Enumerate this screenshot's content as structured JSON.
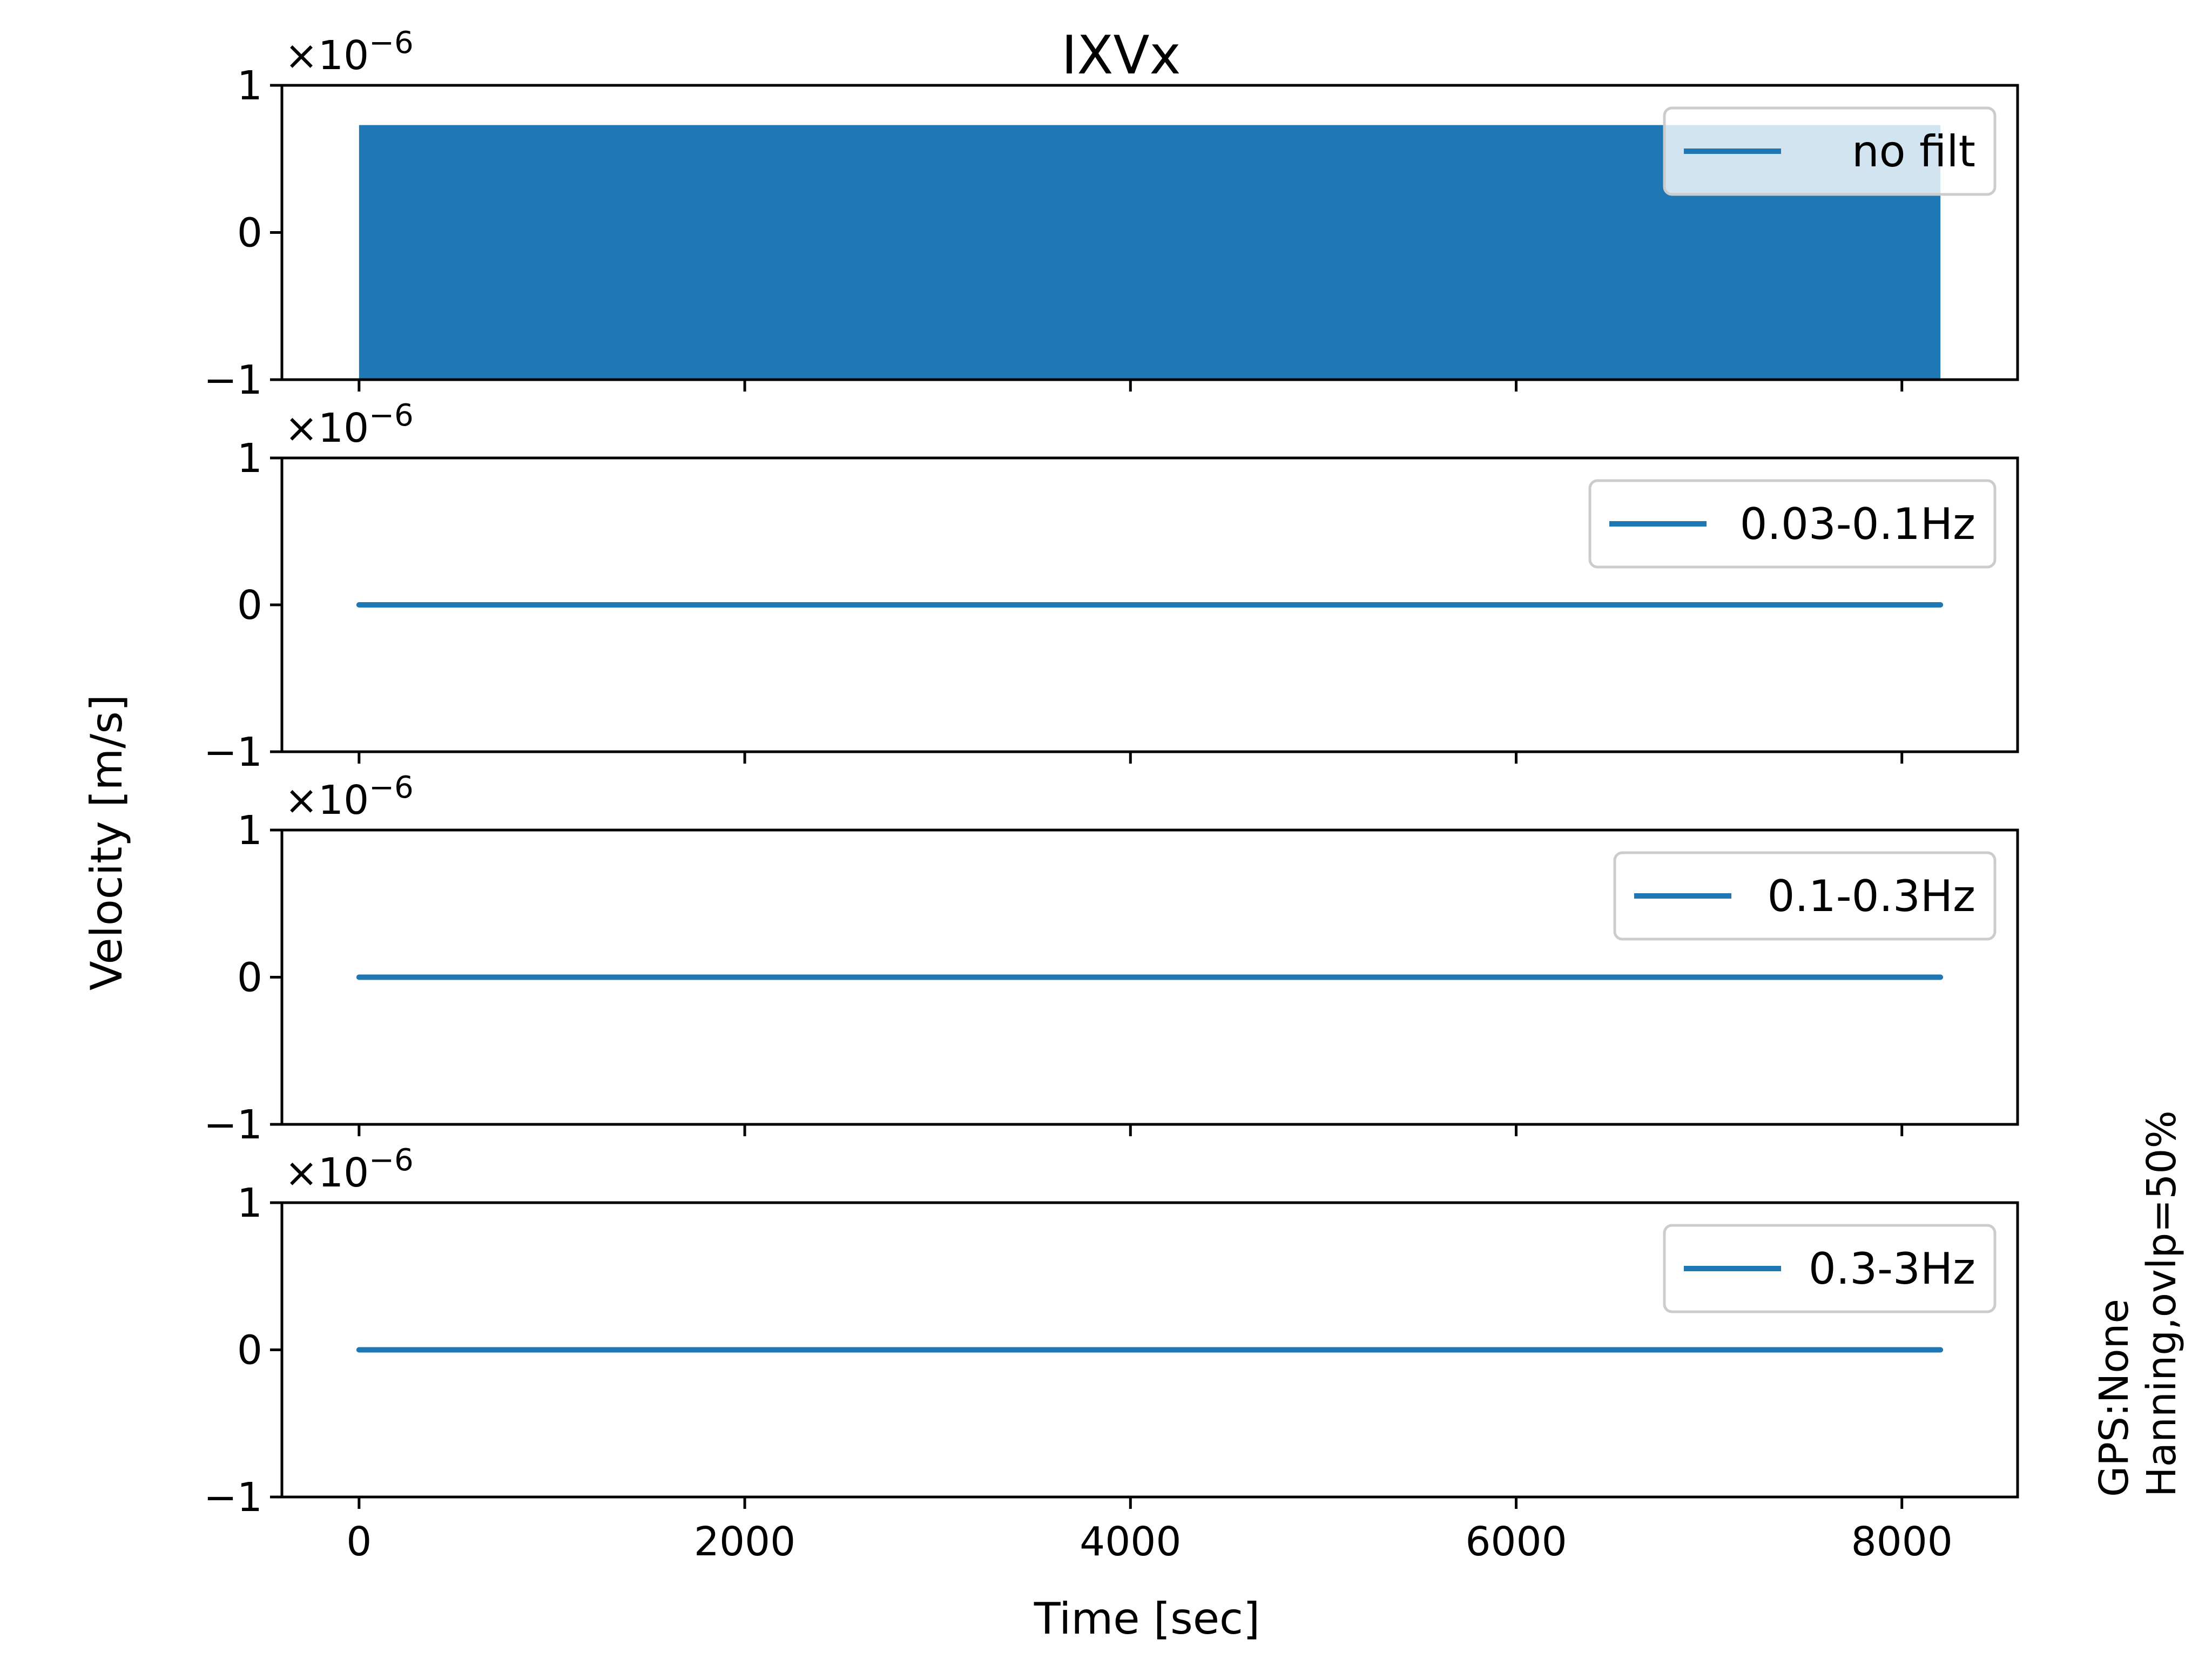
{
  "chart_data": {
    "type": "line",
    "title": "IXVx",
    "xlabel": "Time [sec]",
    "ylabel": "Velocity [m/s]",
    "xlim": [
      -400,
      8600
    ],
    "x_ticks": [
      0,
      2000,
      4000,
      6000,
      8000
    ],
    "x_tick_labels": [
      "0",
      "2000",
      "4000",
      "6000",
      "8000"
    ],
    "y_ticks": [
      -1,
      0,
      1
    ],
    "y_tick_labels": [
      "−1",
      "0",
      "1"
    ],
    "y_multiplier_label": "×10",
    "y_multiplier_exponent": "−6",
    "side_note": [
      "GPS:None",
      "Hanning,ovlp=50%"
    ],
    "line_color": "#1f77b4",
    "legend_position": "upper right",
    "panels": [
      {
        "name": "no filt",
        "ylim": [
          -1,
          1
        ],
        "x_range": [
          0,
          8200
        ],
        "y_envelope": [
          -1.0,
          0.73
        ],
        "style": "dense-oscillation"
      },
      {
        "name": "0.03-0.1Hz",
        "ylim": [
          -1,
          1
        ],
        "x_range": [
          0,
          8200
        ],
        "y_values": [
          0,
          0
        ],
        "style": "flat"
      },
      {
        "name": "0.1-0.3Hz",
        "ylim": [
          -1,
          1
        ],
        "x_range": [
          0,
          8200
        ],
        "y_values": [
          0,
          0
        ],
        "style": "flat"
      },
      {
        "name": "0.3-3Hz",
        "ylim": [
          -1,
          1
        ],
        "x_range": [
          0,
          8200
        ],
        "y_values": [
          0,
          0
        ],
        "style": "flat"
      }
    ]
  }
}
